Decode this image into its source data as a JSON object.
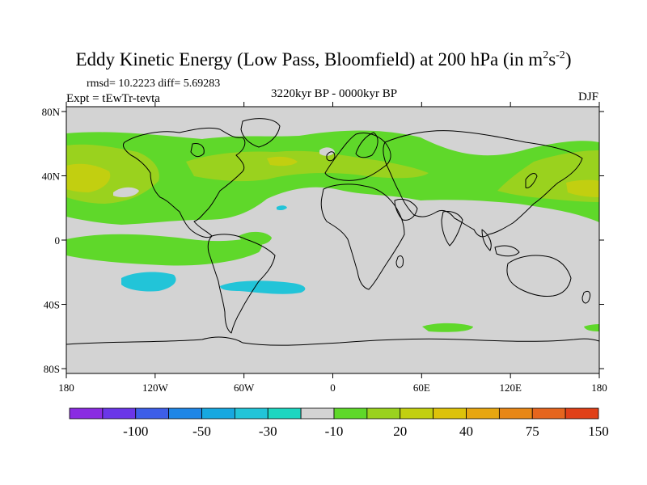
{
  "title": {
    "main": "Eddy Kinetic Energy (Low Pass, Bloomfield) at 200 hPa (in m",
    "sup1": "2",
    "mid": "s",
    "sup2": "-2",
    "end": ")"
  },
  "stats": "rmsd= 10.2223 diff= 5.69283",
  "expt": "Expt = tEwTr-tevta",
  "period": "3220kyr BP - 0000kyr BP",
  "season": "DJF",
  "map": {
    "lat_labels": [
      "80N",
      "40N",
      "0",
      "40S",
      "80S"
    ],
    "lon_labels": [
      "180",
      "120W",
      "60W",
      "0",
      "60E",
      "120E",
      "180"
    ],
    "lat_values": [
      80,
      40,
      0,
      -40,
      -80
    ],
    "lon_values": [
      -180,
      -120,
      -60,
      0,
      60,
      120,
      180
    ],
    "background_color": "#d3d3d3",
    "coastline_color": "#000000"
  },
  "colorbar": {
    "colors": [
      "#8a2be2",
      "#6a36e8",
      "#3d5ee8",
      "#1f86e6",
      "#17a8e0",
      "#22c4d8",
      "#1dd6c0",
      "#d3d3d3",
      "#5fd82a",
      "#9ad21e",
      "#c2cf10",
      "#ddc20a",
      "#e7a610",
      "#e88716",
      "#e5651e",
      "#e04018"
    ],
    "labels": [
      "-100",
      "-50",
      "-30",
      "-10",
      "20",
      "40",
      "75",
      "150"
    ]
  },
  "field_colors": {
    "pos1": "#5fd82a",
    "pos2": "#9ad21e",
    "pos3": "#c2cf10",
    "neg1": "#22c4d8"
  }
}
